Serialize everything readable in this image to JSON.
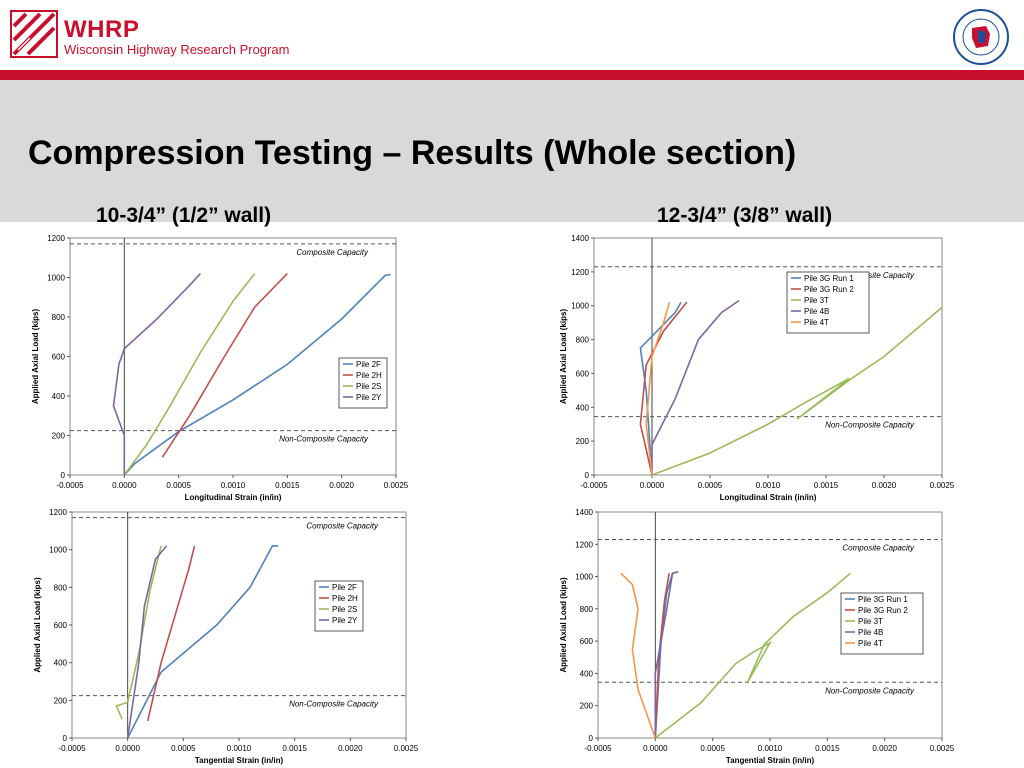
{
  "header": {
    "org_abbr": "WHRP",
    "org_name": "Wisconsin Highway Research Program",
    "seal_text": "WISCONSIN DEPARTMENT OF TRANSPORTATION"
  },
  "slide": {
    "title": "Compression Testing – Results (Whole section)",
    "left_subtitle": "10-3/4” (1/2” wall)",
    "right_subtitle": "12-3/4” (3/8” wall)"
  },
  "colors": {
    "accent": "#c8102e",
    "band": "#d9d9d9",
    "series_blue": "#4f81bd",
    "series_red": "#c0504d",
    "series_green": "#9bbb59",
    "series_purple": "#8064a2",
    "series_orange": "#f79646"
  },
  "chart_data": [
    {
      "type": "line",
      "xlabel": "Longitudinal Strain (in/in)",
      "ylabel": "Applied Axial Load (kips)",
      "xlim": [
        -0.0005,
        0.0025
      ],
      "ylim": [
        0,
        1200
      ],
      "xticks": [
        "-0.0005",
        "0.0000",
        "0.0005",
        "0.0010",
        "0.0015",
        "0.0020",
        "0.0025"
      ],
      "yticks": [
        "0",
        "200",
        "400",
        "600",
        "800",
        "1000",
        "1200"
      ],
      "legend": "right-middle",
      "reference_lines": [
        {
          "label": "Composite Capacity",
          "y": 1170
        },
        {
          "label": "Non-Composite Capacity",
          "y": 225
        }
      ],
      "series": [
        {
          "name": "Pile 2F",
          "color": "#4f81bd",
          "points": [
            [
              0.0,
              0
            ],
            [
              0.0001,
              60
            ],
            [
              0.0005,
              220
            ],
            [
              0.001,
              380
            ],
            [
              0.0015,
              560
            ],
            [
              0.002,
              790
            ],
            [
              0.0024,
              1010
            ],
            [
              0.00245,
              1015
            ]
          ]
        },
        {
          "name": "Pile 2H",
          "color": "#c0504d",
          "points": [
            [
              0.00035,
              90
            ],
            [
              0.0006,
              300
            ],
            [
              0.0009,
              580
            ],
            [
              0.0012,
              850
            ],
            [
              0.0015,
              1020
            ]
          ]
        },
        {
          "name": "Pile 2S",
          "color": "#9bbb59",
          "points": [
            [
              0.0,
              0
            ],
            [
              0.0002,
              150
            ],
            [
              0.0004,
              330
            ],
            [
              0.0007,
              620
            ],
            [
              0.001,
              880
            ],
            [
              0.0012,
              1020
            ]
          ]
        },
        {
          "name": "Pile 2Y",
          "color": "#8064a2",
          "points": [
            [
              0.0,
              0
            ],
            [
              0.0,
              200
            ],
            [
              -0.0001,
              350
            ],
            [
              -5e-05,
              560
            ],
            [
              0.0,
              640
            ],
            [
              0.0003,
              790
            ],
            [
              0.0006,
              960
            ],
            [
              0.0007,
              1020
            ]
          ]
        }
      ]
    },
    {
      "type": "line",
      "xlabel": "Longitudinal Strain (in/in)",
      "ylabel": "Applied Axial Load (kips)",
      "xlim": [
        -0.0005,
        0.0025
      ],
      "ylim": [
        0,
        1400
      ],
      "xticks": [
        "-0.0005",
        "0.0000",
        "0.0005",
        "0.0010",
        "0.0015",
        "0.0020",
        "0.0025"
      ],
      "yticks": [
        "0",
        "200",
        "400",
        "600",
        "800",
        "1000",
        "1200",
        "1400"
      ],
      "legend": "top-center",
      "reference_lines": [
        {
          "label": "Composite Capacity",
          "y": 1230
        },
        {
          "label": "Non-Composite Capacity",
          "y": 345
        }
      ],
      "series": [
        {
          "name": "Pile 3G Run 1",
          "color": "#4f81bd",
          "points": [
            [
              0.0,
              0
            ],
            [
              -5e-05,
              500
            ],
            [
              -0.0001,
              750
            ],
            [
              0.0,
              820
            ],
            [
              0.0002,
              960
            ],
            [
              0.00025,
              1020
            ]
          ]
        },
        {
          "name": "Pile 3G Run 2",
          "color": "#c0504d",
          "points": [
            [
              0.0,
              0
            ],
            [
              -0.0001,
              300
            ],
            [
              -5e-05,
              650
            ],
            [
              0.0001,
              850
            ],
            [
              0.0003,
              1020
            ]
          ]
        },
        {
          "name": "Pile 3T",
          "color": "#9bbb59",
          "points": [
            [
              0.0,
              0
            ],
            [
              0.0005,
              130
            ],
            [
              0.001,
              300
            ],
            [
              0.0013,
              420
            ],
            [
              0.0017,
              570
            ],
            [
              0.00125,
              330
            ],
            [
              0.0017,
              560
            ],
            [
              0.002,
              700
            ],
            [
              0.0025,
              990
            ]
          ]
        },
        {
          "name": "Pile 4B",
          "color": "#8064a2",
          "points": [
            [
              0.0,
              0
            ],
            [
              0.0,
              180
            ],
            [
              0.0002,
              450
            ],
            [
              0.0004,
              800
            ],
            [
              0.0006,
              960
            ],
            [
              0.00075,
              1030
            ]
          ]
        },
        {
          "name": "Pile 4T",
          "color": "#f79646",
          "points": [
            [
              0.0,
              0
            ],
            [
              -5e-05,
              300
            ],
            [
              0.0,
              700
            ],
            [
              0.0001,
              900
            ],
            [
              0.00015,
              1020
            ]
          ]
        }
      ]
    },
    {
      "type": "line",
      "xlabel": "Tangential Strain (in/in)",
      "ylabel": "Applied Axial Load (kips)",
      "xlim": [
        -0.0005,
        0.0025
      ],
      "ylim": [
        0,
        1200
      ],
      "xticks": [
        "-0.0005",
        "0.0000",
        "0.0005",
        "0.0010",
        "0.0015",
        "0.0020",
        "0.0025"
      ],
      "yticks": [
        "0",
        "200",
        "400",
        "600",
        "800",
        "1000",
        "1200"
      ],
      "legend": "right-middle",
      "reference_lines": [
        {
          "label": "Composite Capacity",
          "y": 1170
        },
        {
          "label": "Non-Composite Capacity",
          "y": 225
        }
      ],
      "series": [
        {
          "name": "Pile 2F",
          "color": "#4f81bd",
          "points": [
            [
              0.0,
              0
            ],
            [
              0.0003,
              350
            ],
            [
              0.0008,
              600
            ],
            [
              0.0011,
              800
            ],
            [
              0.0013,
              1020
            ],
            [
              0.00135,
              1020
            ]
          ]
        },
        {
          "name": "Pile 2H",
          "color": "#c0504d",
          "points": [
            [
              0.00018,
              90
            ],
            [
              0.0003,
              400
            ],
            [
              0.00045,
              700
            ],
            [
              0.00055,
              900
            ],
            [
              0.0006,
              1020
            ]
          ]
        },
        {
          "name": "Pile 2S",
          "color": "#9bbb59",
          "points": [
            [
              -5e-05,
              100
            ],
            [
              -0.0001,
              170
            ],
            [
              0.0,
              190
            ],
            [
              0.0001,
              450
            ],
            [
              0.0002,
              780
            ],
            [
              0.0003,
              1020
            ]
          ]
        },
        {
          "name": "Pile 2Y",
          "color": "#8064a2",
          "points": [
            [
              0.0,
              0
            ],
            [
              0.0001,
              400
            ],
            [
              0.00015,
              700
            ],
            [
              0.00025,
              950
            ],
            [
              0.00035,
              1020
            ]
          ]
        }
      ]
    },
    {
      "type": "line",
      "xlabel": "Tangential Strain (in/in)",
      "ylabel": "Applied Axial Load (kips)",
      "xlim": [
        -0.0005,
        0.0025
      ],
      "ylim": [
        0,
        1400
      ],
      "xticks": [
        "-0.0005",
        "0.0000",
        "0.0005",
        "0.0010",
        "0.0015",
        "0.0020",
        "0.0025"
      ],
      "yticks": [
        "0",
        "200",
        "400",
        "600",
        "800",
        "1000",
        "1200",
        "1400"
      ],
      "legend": "right-middle",
      "reference_lines": [
        {
          "label": "Composite Capacity",
          "y": 1230
        },
        {
          "label": "Non-Composite Capacity",
          "y": 345
        }
      ],
      "series": [
        {
          "name": "Pile 3G Run 1",
          "color": "#4f81bd",
          "points": [
            [
              0.0,
              0
            ],
            [
              5e-05,
              600
            ],
            [
              0.0001,
              900
            ],
            [
              0.00015,
              1020
            ]
          ]
        },
        {
          "name": "Pile 3G Run 2",
          "color": "#c0504d",
          "points": [
            [
              0.0,
              0
            ],
            [
              3e-05,
              500
            ],
            [
              8e-05,
              850
            ],
            [
              0.00012,
              1020
            ]
          ]
        },
        {
          "name": "Pile 3T",
          "color": "#9bbb59",
          "points": [
            [
              0.0,
              0
            ],
            [
              0.0004,
              220
            ],
            [
              0.0007,
              460
            ],
            [
              0.00085,
              530
            ],
            [
              0.001,
              590
            ],
            [
              0.0008,
              340
            ],
            [
              0.00095,
              580
            ],
            [
              0.0012,
              750
            ],
            [
              0.0015,
              900
            ],
            [
              0.0017,
              1020
            ]
          ]
        },
        {
          "name": "Pile 4B",
          "color": "#8064a2",
          "points": [
            [
              0.0,
              0
            ],
            [
              0.0,
              400
            ],
            [
              0.0001,
              800
            ],
            [
              0.00015,
              1020
            ],
            [
              0.0002,
              1030
            ]
          ]
        },
        {
          "name": "Pile 4T",
          "color": "#f79646",
          "points": [
            [
              0.0,
              0
            ],
            [
              -0.00015,
              300
            ],
            [
              -0.0002,
              550
            ],
            [
              -0.00015,
              800
            ],
            [
              -0.0002,
              950
            ],
            [
              -0.0003,
              1020
            ]
          ]
        }
      ]
    }
  ]
}
